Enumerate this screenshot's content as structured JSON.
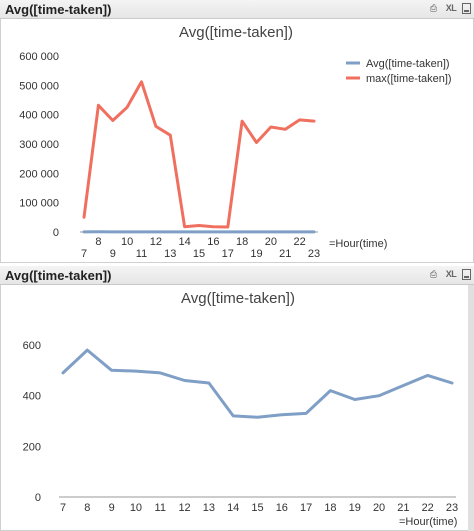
{
  "top_panel": {
    "caption": "Avg([time-taken])",
    "icons": [
      "print-icon",
      "xl-export-icon",
      "minimize-icon"
    ],
    "xl_label": "XL"
  },
  "bottom_panel": {
    "caption": "Avg([time-taken])",
    "icons": [
      "print-icon",
      "xl-export-icon",
      "minimize-icon"
    ],
    "xl_label": "XL"
  },
  "chart_data": [
    {
      "type": "line",
      "title": "Avg([time-taken])",
      "xlabel": "=Hour(time)",
      "ylabel": "",
      "categories": [
        7,
        8,
        9,
        10,
        11,
        12,
        13,
        14,
        15,
        16,
        17,
        18,
        19,
        20,
        21,
        22,
        23
      ],
      "ylim": [
        0,
        600000
      ],
      "yticks": [
        "0",
        "100 000",
        "200 000",
        "300 000",
        "400 000",
        "500 000",
        "600 000"
      ],
      "legend_placement": "top-right",
      "grid": false,
      "series": [
        {
          "name": "Avg([time-taken])",
          "color": "#7f9fc6",
          "values": [
            490,
            580,
            500,
            497,
            490,
            460,
            450,
            320,
            315,
            325,
            330,
            420,
            385,
            400,
            440,
            480,
            450
          ]
        },
        {
          "name": "max([time-taken])",
          "color": "#f07060",
          "values": [
            50000,
            432000,
            380000,
            425000,
            512000,
            360000,
            330000,
            18000,
            22000,
            18000,
            17000,
            378000,
            305000,
            358000,
            350000,
            382000,
            378000
          ]
        }
      ]
    },
    {
      "type": "line",
      "title": "Avg([time-taken])",
      "xlabel": "=Hour(time)",
      "ylabel": "",
      "categories": [
        7,
        8,
        9,
        10,
        11,
        12,
        13,
        14,
        15,
        16,
        17,
        18,
        19,
        20,
        21,
        22,
        23
      ],
      "ylim": [
        0,
        600
      ],
      "yticks": [
        "0",
        "200",
        "400",
        "600"
      ],
      "grid": false,
      "series": [
        {
          "color": "#7f9fc6",
          "values": [
            490,
            580,
            500,
            497,
            490,
            460,
            450,
            320,
            315,
            325,
            330,
            420,
            385,
            400,
            440,
            480,
            450
          ]
        }
      ]
    }
  ]
}
